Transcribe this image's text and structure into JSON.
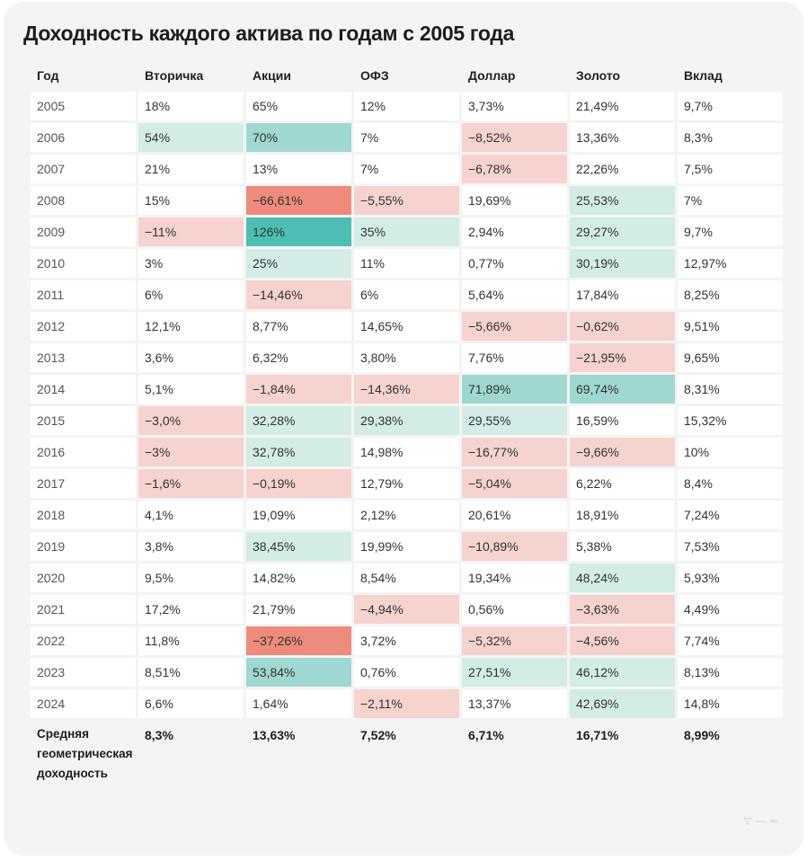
{
  "chart_data": {
    "type": "table",
    "title": "Доходность каждого актива по годам с 2005 года",
    "columns": [
      "Год",
      "Вторичка",
      "Акции",
      "ОФЗ",
      "Доллар",
      "Золото",
      "Вклад"
    ],
    "rows": [
      {
        "cells": [
          "2005",
          "18%",
          "65%",
          "12%",
          "3,73%",
          "21,49%",
          "9,7%"
        ],
        "tones": [
          "",
          "",
          "",
          "",
          "",
          "",
          ""
        ]
      },
      {
        "cells": [
          "2006",
          "54%",
          "70%",
          "7%",
          "−8,52%",
          "13,36%",
          "8,3%"
        ],
        "tones": [
          "",
          "pl",
          "pm",
          "",
          "nl",
          "",
          ""
        ]
      },
      {
        "cells": [
          "2007",
          "21%",
          "13%",
          "7%",
          "−6,78%",
          "22,26%",
          "7,5%"
        ],
        "tones": [
          "",
          "",
          "",
          "",
          "nl",
          "",
          ""
        ]
      },
      {
        "cells": [
          "2008",
          "15%",
          "−66,61%",
          "−5,55%",
          "19,69%",
          "25,53%",
          "7%"
        ],
        "tones": [
          "",
          "",
          "ns",
          "nl",
          "",
          "pl",
          ""
        ]
      },
      {
        "cells": [
          "2009",
          "−11%",
          "126%",
          "35%",
          "2,94%",
          "29,27%",
          "9,7%"
        ],
        "tones": [
          "",
          "nl",
          "ps",
          "pl",
          "",
          "pl",
          ""
        ]
      },
      {
        "cells": [
          "2010",
          "3%",
          "25%",
          "11%",
          "0,77%",
          "30,19%",
          "12,97%"
        ],
        "tones": [
          "",
          "",
          "pl",
          "",
          "",
          "pl",
          ""
        ]
      },
      {
        "cells": [
          "2011",
          "6%",
          "−14,46%",
          "6%",
          "5,64%",
          "17,84%",
          "8,25%"
        ],
        "tones": [
          "",
          "",
          "nl",
          "",
          "",
          "",
          ""
        ]
      },
      {
        "cells": [
          "2012",
          "12,1%",
          "8,77%",
          "14,65%",
          "−5,66%",
          "−0,62%",
          "9,51%"
        ],
        "tones": [
          "",
          "",
          "",
          "",
          "nl",
          "nl",
          ""
        ]
      },
      {
        "cells": [
          "2013",
          "3,6%",
          "6,32%",
          "3,80%",
          "7,76%",
          "−21,95%",
          "9,65%"
        ],
        "tones": [
          "",
          "",
          "",
          "",
          "",
          "nl",
          ""
        ]
      },
      {
        "cells": [
          "2014",
          "5,1%",
          "−1,84%",
          "−14,36%",
          "71,89%",
          "69,74%",
          "8,31%"
        ],
        "tones": [
          "",
          "",
          "nl",
          "nl",
          "pm",
          "pm",
          ""
        ]
      },
      {
        "cells": [
          "2015",
          "−3,0%",
          "32,28%",
          "29,38%",
          "29,55%",
          "16,59%",
          "15,32%"
        ],
        "tones": [
          "",
          "nl",
          "pl",
          "pl",
          "pl",
          "",
          ""
        ]
      },
      {
        "cells": [
          "2016",
          "−3%",
          "32,78%",
          "14,98%",
          "−16,77%",
          "−9,66%",
          "10%"
        ],
        "tones": [
          "",
          "nl",
          "pl",
          "",
          "nl",
          "nl",
          ""
        ]
      },
      {
        "cells": [
          "2017",
          "−1,6%",
          "−0,19%",
          "12,79%",
          "−5,04%",
          "6,22%",
          "8,4%"
        ],
        "tones": [
          "",
          "nl",
          "nl",
          "",
          "nl",
          "",
          ""
        ]
      },
      {
        "cells": [
          "2018",
          "4,1%",
          "19,09%",
          "2,12%",
          "20,61%",
          "18,91%",
          "7,24%"
        ],
        "tones": [
          "",
          "",
          "",
          "",
          "",
          "",
          ""
        ]
      },
      {
        "cells": [
          "2019",
          "3,8%",
          "38,45%",
          "19,99%",
          "−10,89%",
          "5,38%",
          "7,53%"
        ],
        "tones": [
          "",
          "",
          "pl",
          "",
          "nl",
          "",
          ""
        ]
      },
      {
        "cells": [
          "2020",
          "9,5%",
          "14,82%",
          "8,54%",
          "19,34%",
          "48,24%",
          "5,93%"
        ],
        "tones": [
          "",
          "",
          "",
          "",
          "",
          "pl",
          ""
        ]
      },
      {
        "cells": [
          "2021",
          "17,2%",
          "21,79%",
          "−4,94%",
          "0,56%",
          "−3,63%",
          "4,49%"
        ],
        "tones": [
          "",
          "",
          "",
          "nl",
          "",
          "nl",
          ""
        ]
      },
      {
        "cells": [
          "2022",
          "11,8%",
          "−37,26%",
          "3,72%",
          "−5,32%",
          "−4,56%",
          "7,74%"
        ],
        "tones": [
          "",
          "",
          "ns",
          "",
          "nl",
          "nl",
          ""
        ]
      },
      {
        "cells": [
          "2023",
          "8,51%",
          "53,84%",
          "0,76%",
          "27,51%",
          "46,12%",
          "8,13%"
        ],
        "tones": [
          "",
          "",
          "pm",
          "",
          "pl",
          "pl",
          ""
        ]
      },
      {
        "cells": [
          "2024",
          "6,6%",
          "1,64%",
          "−2,11%",
          "13,37%",
          "42,69%",
          "14,8%"
        ],
        "tones": [
          "",
          "",
          "",
          "nl",
          "",
          "pl",
          ""
        ]
      }
    ],
    "summary": {
      "label": "Средняя геометрическая доходность",
      "values": [
        "8,3%",
        "13,63%",
        "7,52%",
        "6,71%",
        "16,71%",
        "8,99%"
      ]
    },
    "colors": {
      "positive_light": "#d4ece6",
      "positive_medium": "#9fd8d0",
      "positive_strong": "#4cbfb2",
      "negative_light": "#f6d3cf",
      "negative_strong": "#ee8b7c"
    }
  }
}
